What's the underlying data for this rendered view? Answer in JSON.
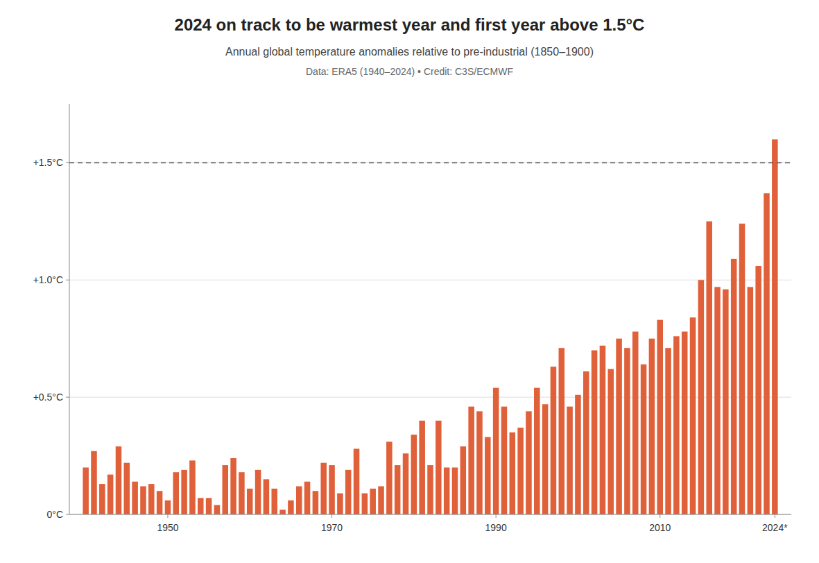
{
  "chart_data": {
    "type": "bar",
    "title": "2024 on track to be warmest year and first year above 1.5°C",
    "subtitle": "Annual global temperature anomalies relative to pre-industrial (1850–1900)",
    "source": "Data: ERA5 (1940–2024)  •  Credit: C3S/ECMWF",
    "x": [
      1940,
      1941,
      1942,
      1943,
      1944,
      1945,
      1946,
      1947,
      1948,
      1949,
      1950,
      1951,
      1952,
      1953,
      1954,
      1955,
      1956,
      1957,
      1958,
      1959,
      1960,
      1961,
      1962,
      1963,
      1964,
      1965,
      1966,
      1967,
      1968,
      1969,
      1970,
      1971,
      1972,
      1973,
      1974,
      1975,
      1976,
      1977,
      1978,
      1979,
      1980,
      1981,
      1982,
      1983,
      1984,
      1985,
      1986,
      1987,
      1988,
      1989,
      1990,
      1991,
      1992,
      1993,
      1994,
      1995,
      1996,
      1997,
      1998,
      1999,
      2000,
      2001,
      2002,
      2003,
      2004,
      2005,
      2006,
      2007,
      2008,
      2009,
      2010,
      2011,
      2012,
      2013,
      2014,
      2015,
      2016,
      2017,
      2018,
      2019,
      2020,
      2021,
      2022,
      2023,
      2024
    ],
    "values": [
      0.2,
      0.27,
      0.13,
      0.17,
      0.29,
      0.22,
      0.14,
      0.12,
      0.13,
      0.1,
      0.06,
      0.18,
      0.19,
      0.23,
      0.07,
      0.07,
      0.04,
      0.21,
      0.24,
      0.18,
      0.11,
      0.19,
      0.15,
      0.11,
      0.02,
      0.06,
      0.12,
      0.14,
      0.1,
      0.22,
      0.21,
      0.09,
      0.19,
      0.28,
      0.09,
      0.11,
      0.12,
      0.31,
      0.21,
      0.26,
      0.34,
      0.4,
      0.21,
      0.4,
      0.2,
      0.2,
      0.29,
      0.46,
      0.44,
      0.33,
      0.54,
      0.46,
      0.35,
      0.37,
      0.44,
      0.54,
      0.47,
      0.63,
      0.71,
      0.46,
      0.51,
      0.61,
      0.7,
      0.72,
      0.62,
      0.75,
      0.71,
      0.78,
      0.64,
      0.75,
      0.83,
      0.71,
      0.76,
      0.78,
      0.84,
      1.0,
      1.25,
      0.97,
      0.96,
      1.09,
      1.24,
      0.97,
      1.06,
      1.37,
      1.6
    ],
    "color": "#e0603a",
    "threshold": 1.5,
    "xlim": [
      1938,
      2026
    ],
    "xticks": [
      1950,
      1970,
      1990,
      2010,
      {
        "value": 2024,
        "label": "2024*"
      }
    ],
    "ylim": [
      0,
      1.75
    ],
    "yticks": [
      {
        "value": 0,
        "label": "0°C"
      },
      {
        "value": 0.5,
        "label": "+0.5°C"
      },
      {
        "value": 1.0,
        "label": "+1.0°C"
      },
      {
        "value": 1.5,
        "label": "+1.5°C"
      }
    ],
    "grid": true
  }
}
